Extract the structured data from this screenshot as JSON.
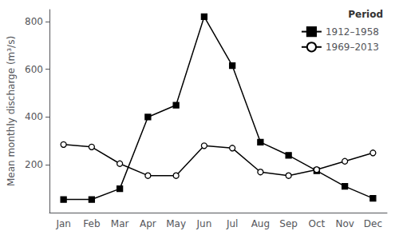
{
  "chart_data": {
    "type": "line",
    "categories": [
      "Jan",
      "Feb",
      "Mar",
      "Apr",
      "May",
      "Jun",
      "Jul",
      "Aug",
      "Sep",
      "Oct",
      "Nov",
      "Dec"
    ],
    "series": [
      {
        "name": "1912–1958",
        "color": "black",
        "marker": "square",
        "values": [
          55,
          55,
          100,
          400,
          450,
          820,
          615,
          295,
          240,
          175,
          110,
          60
        ]
      },
      {
        "name": "1969–2013",
        "color": "black",
        "marker": "open_circle",
        "values": [
          285,
          275,
          205,
          155,
          155,
          280,
          270,
          170,
          155,
          180,
          215,
          250
        ]
      }
    ],
    "ylabel": "Mean monthly discharge (m³/s)",
    "ylim": [
      0,
      850
    ],
    "yticks": [
      200,
      400,
      600,
      800
    ],
    "grid": false,
    "legend": "upper right",
    "legend_title": "Period"
  }
}
